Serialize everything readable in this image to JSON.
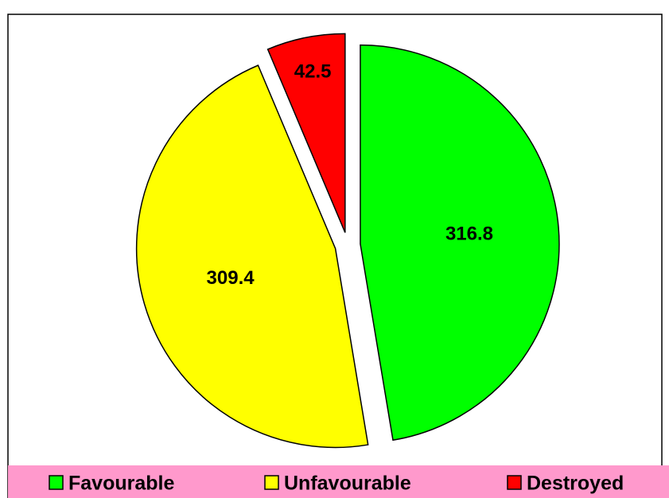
{
  "chart_data": {
    "type": "pie",
    "categories": [
      "Favourable",
      "Unfavourable",
      "Destroyed"
    ],
    "values": [
      316.8,
      309.4,
      42.5
    ],
    "colors": [
      "#00ff00",
      "#ffff00",
      "#ff0000"
    ],
    "legend": "bottom"
  }
}
